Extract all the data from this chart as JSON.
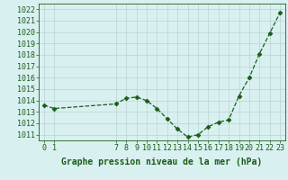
{
  "x": [
    0,
    1,
    7,
    8,
    9,
    10,
    11,
    12,
    13,
    14,
    15,
    16,
    17,
    18,
    19,
    20,
    21,
    22,
    23
  ],
  "y": [
    1013.6,
    1013.3,
    1013.7,
    1014.2,
    1014.3,
    1014.0,
    1013.3,
    1012.4,
    1011.5,
    1010.8,
    1011.0,
    1011.7,
    1012.1,
    1012.3,
    1014.4,
    1016.0,
    1018.1,
    1019.9,
    1021.7
  ],
  "ylim": [
    1010.5,
    1022.5
  ],
  "yticks": [
    1011,
    1012,
    1013,
    1014,
    1015,
    1016,
    1017,
    1018,
    1019,
    1020,
    1021,
    1022
  ],
  "xticks": [
    0,
    1,
    7,
    8,
    9,
    10,
    11,
    12,
    13,
    14,
    15,
    16,
    17,
    18,
    19,
    20,
    21,
    22,
    23
  ],
  "xlabel": "Graphe pression niveau de la mer (hPa)",
  "line_color": "#1a5c1a",
  "marker": "D",
  "marker_size": 2.5,
  "bg_color": "#d9f0f0",
  "grid_color": "#b8d4d4",
  "tick_fontsize": 6,
  "xlabel_fontsize": 7
}
